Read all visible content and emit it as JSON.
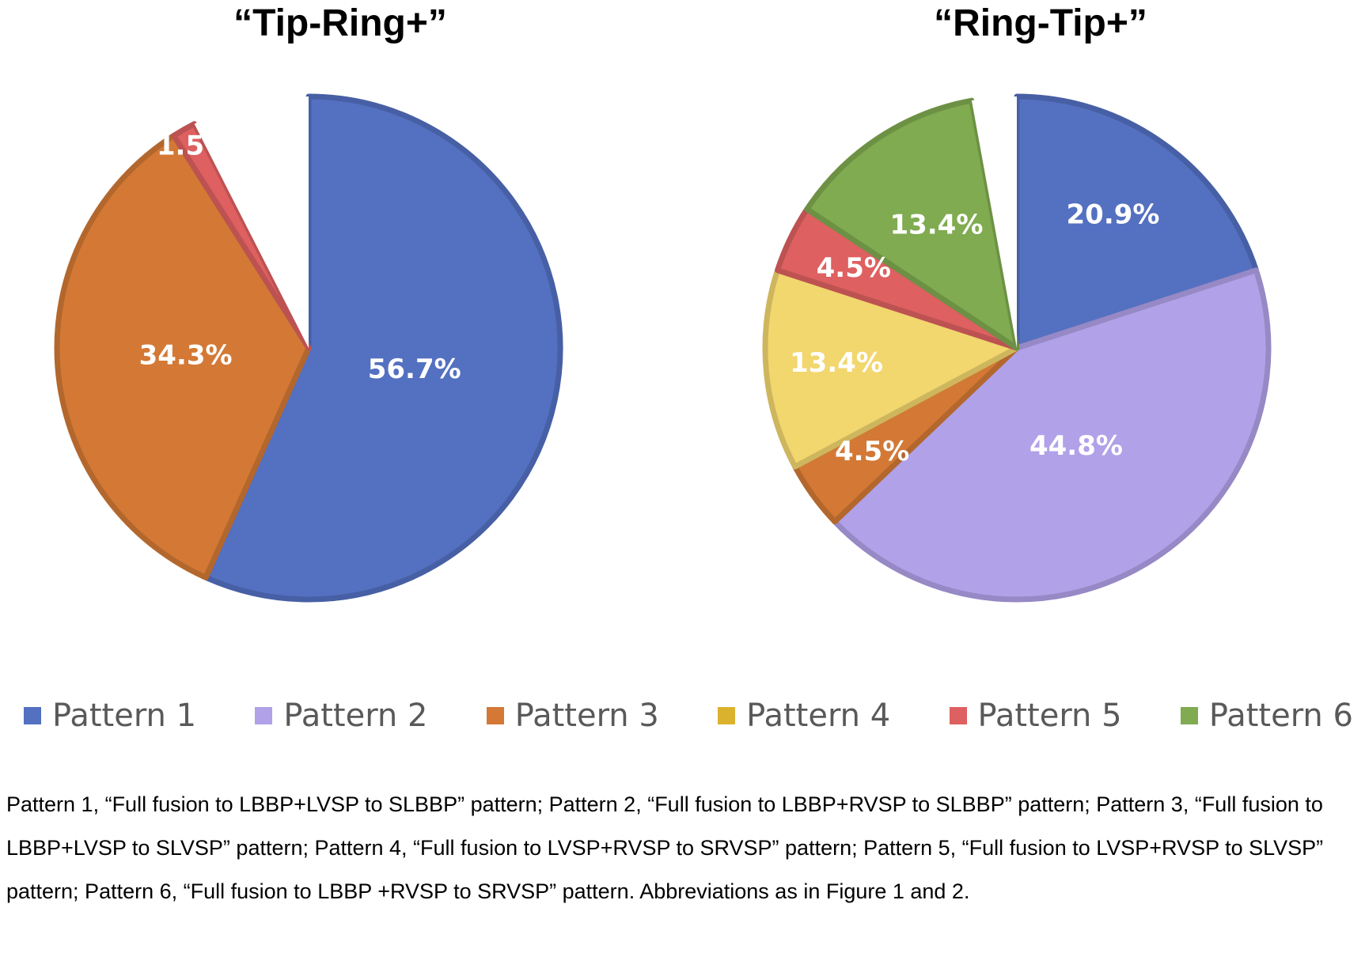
{
  "chart_data": [
    {
      "type": "pie",
      "title": "“Tip-Ring+”",
      "slices": [
        {
          "label": "Pattern 1",
          "value": 56.7,
          "text": "56.7%",
          "color": "#5470C1"
        },
        {
          "label": "Pattern 3",
          "value": 34.3,
          "text": "34.3%",
          "color": "#D37935"
        },
        {
          "label": "Pattern 5",
          "value": 1.5,
          "text": "1.5%",
          "color": "#DE6060"
        },
        {
          "label": "",
          "value": 7.5,
          "text": "",
          "color": "#FFFFFF"
        }
      ]
    },
    {
      "type": "pie",
      "title": "“Ring-Tip+”",
      "slices": [
        {
          "label": "Pattern 1",
          "value": 20.9,
          "text": "20.9%",
          "color": "#5470C1"
        },
        {
          "label": "Pattern 2",
          "value": 44.8,
          "text": "44.8%",
          "color": "#B1A1E8"
        },
        {
          "label": "Pattern 3",
          "value": 4.5,
          "text": "4.5%",
          "color": "#D37935"
        },
        {
          "label": "Pattern 4",
          "value": 13.4,
          "text": "13.4%",
          "color": "#F2D66E"
        },
        {
          "label": "Pattern 5",
          "value": 4.5,
          "text": "4.5%",
          "color": "#DE6060"
        },
        {
          "label": "Pattern 6",
          "value": 13.4,
          "text": "13.4%",
          "color": "#80AB50"
        },
        {
          "label": "",
          "value": 3.0,
          "text": "",
          "color": "#FFFFFF"
        }
      ]
    }
  ],
  "legend": {
    "position": "bottom",
    "items": [
      {
        "label": "Pattern 1",
        "color": "#5470C1"
      },
      {
        "label": "Pattern 2",
        "color": "#B1A1E8"
      },
      {
        "label": "Pattern 3",
        "color": "#D37935"
      },
      {
        "label": "Pattern 4",
        "color": "#DBB22E"
      },
      {
        "label": "Pattern 5",
        "color": "#DE6060"
      },
      {
        "label": "Pattern 6",
        "color": "#80AB50"
      }
    ]
  },
  "caption": "Pattern 1, “Full fusion to LBBP+LVSP to SLBBP” pattern; Pattern 2, “Full fusion to LBBP+RVSP to SLBBP” pattern; Pattern 3, “Full fusion to LBBP+LVSP to SLVSP” pattern; Pattern 4, “Full fusion to LVSP+RVSP to SRVSP” pattern; Pattern 5, “Full fusion to LVSP+RVSP to SLVSP” pattern; Pattern 6, “Full fusion to LBBP +RVSP to SRVSP” pattern. Abbreviations as in Figure 1 and 2."
}
